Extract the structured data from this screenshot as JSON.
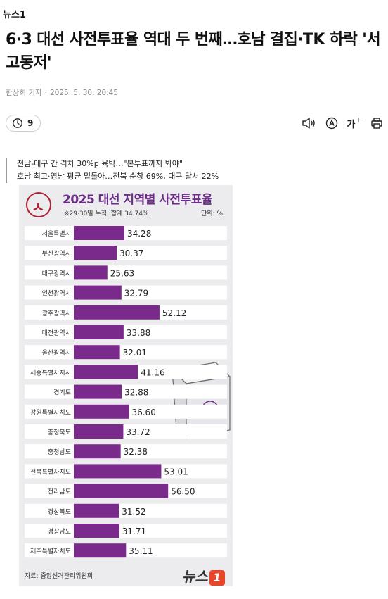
{
  "site": {
    "name": "뉴스1"
  },
  "article": {
    "title": "6·3 대선 사전투표율 역대 두 번째…호남 결집·TK 하락 '서고동저'",
    "author": "한상희 기자",
    "date": "2025. 5. 30. 20:45",
    "comment_count": "9",
    "summary": [
      "전남-대구 간 격차 30%p 육박…\"본투표까지 봐야\"",
      "호남 최고·영남 평균 밑돌아…전북 순창 69%, 대구 달서 22%"
    ]
  },
  "toolbar": {
    "font_size_label": "가"
  },
  "colors": {
    "accent": "#6b2c86",
    "bar": "#7a2a8a",
    "stripe": "#ffffff",
    "background": "#ececee"
  },
  "icons": [
    "clock-comment-icon",
    "speaker-icon",
    "translate-icon",
    "font-size-icon",
    "print-icon",
    "ballot-stamp-icon",
    "ballot-box-icon"
  ],
  "infographic": {
    "title": "2025 대선 지역별 사전투표율",
    "subtitle": "※29·30일 누적, 합계 34.74%",
    "unit": "단위: %",
    "source": "자료: 중앙선거관리위원회",
    "brand": "뉴스",
    "brand_num": "1"
  },
  "chart_data": {
    "type": "bar",
    "orientation": "horizontal",
    "title": "2025 대선 지역별 사전투표율",
    "categories": [
      "서울특별시",
      "부산광역시",
      "대구광역시",
      "인천광역시",
      "광주광역시",
      "대전광역시",
      "울산광역시",
      "세종특별자치시",
      "경기도",
      "강원특별자치도",
      "충청북도",
      "충청남도",
      "전북특별자치도",
      "전라남도",
      "경상북도",
      "경상남도",
      "제주특별자치도"
    ],
    "values": [
      34.28,
      30.37,
      25.63,
      32.79,
      52.12,
      33.88,
      32.01,
      41.16,
      32.88,
      36.6,
      33.72,
      32.38,
      53.01,
      56.5,
      31.52,
      31.71,
      35.11
    ],
    "value_labels": [
      "34.28",
      "30.37",
      "25.63",
      "32.79",
      "52.12",
      "33.88",
      "32.01",
      "41.16",
      "32.88",
      "36.60",
      "33.72",
      "32.38",
      "53.01",
      "56.50",
      "31.52",
      "31.71",
      "35.11"
    ],
    "xlim": [
      0,
      100
    ],
    "grid": false,
    "legend": "none"
  }
}
